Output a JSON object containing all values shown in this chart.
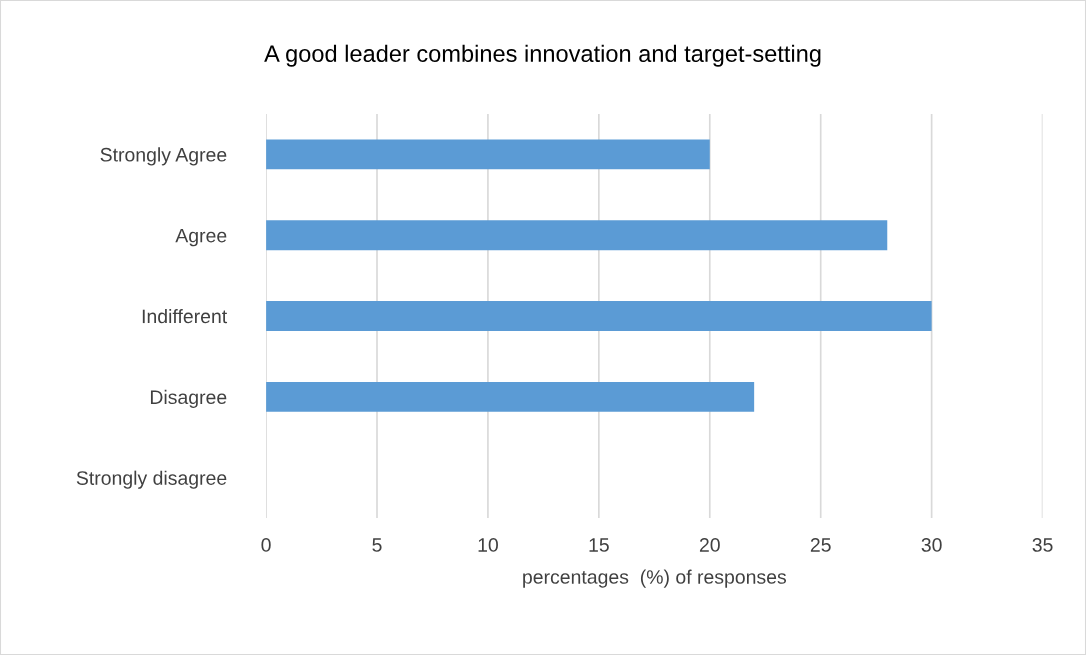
{
  "chart_data": {
    "type": "bar",
    "orientation": "horizontal",
    "title": "A good leader combines innovation and target-setting",
    "xlabel": "percentages  (%) of responses",
    "categories": [
      "Strongly Agree",
      "Agree",
      "Indifferent",
      "Disagree",
      "Strongly disagree"
    ],
    "values": [
      20,
      28,
      30,
      22,
      0
    ],
    "color": "#5b9bd5",
    "xlim": [
      0,
      35
    ],
    "xticks": [
      0,
      5,
      10,
      15,
      20,
      25,
      30,
      35
    ],
    "grid": "x",
    "legend": false
  }
}
